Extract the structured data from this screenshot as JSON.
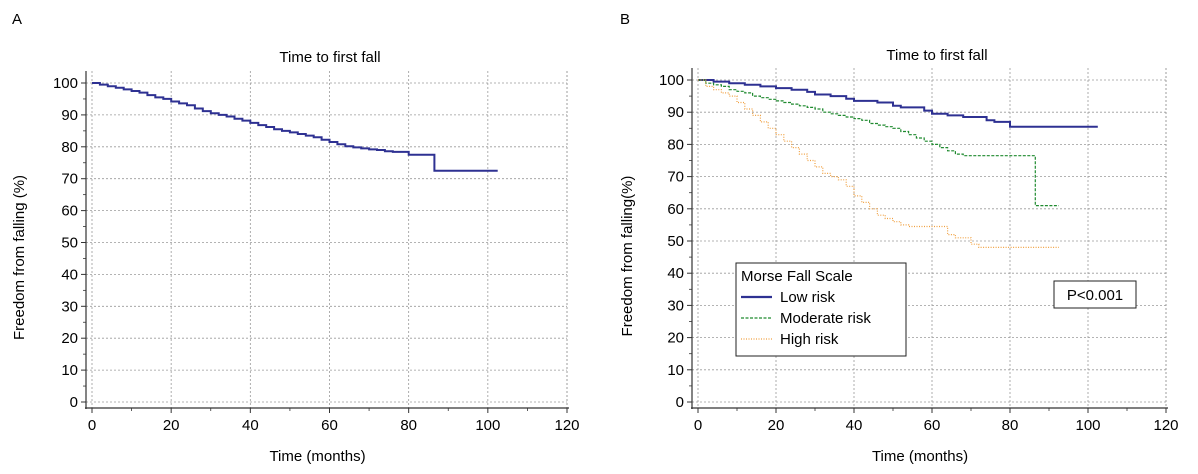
{
  "panels": [
    {
      "letter": "A"
    },
    {
      "letter": "B"
    }
  ],
  "chart_data": [
    {
      "type": "line",
      "title": "Time to first fall",
      "xlabel": "Time (months)",
      "ylabel": "Freedom from falling (%)",
      "xlim": [
        0,
        120
      ],
      "ylim": [
        0,
        100
      ],
      "x_ticks": [
        "0",
        "20",
        "40",
        "60",
        "80",
        "100",
        "120"
      ],
      "y_ticks": [
        "0",
        "10",
        "20",
        "30",
        "40",
        "50",
        "60",
        "70",
        "80",
        "90",
        "100"
      ],
      "grid": true,
      "series": [
        {
          "color": "#2e3192",
          "style": "solid",
          "steps": [
            [
              0,
              100
            ],
            [
              2,
              99.5
            ],
            [
              4,
              99
            ],
            [
              6,
              98.5
            ],
            [
              8,
              98
            ],
            [
              10,
              97.5
            ],
            [
              12,
              97
            ],
            [
              14,
              96.2
            ],
            [
              16,
              95.5
            ],
            [
              18,
              95
            ],
            [
              20,
              94.2
            ],
            [
              22,
              93.6
            ],
            [
              24,
              93
            ],
            [
              26,
              92
            ],
            [
              28,
              91.2
            ],
            [
              30,
              90.5
            ],
            [
              32,
              90
            ],
            [
              34,
              89.5
            ],
            [
              36,
              88.8
            ],
            [
              38,
              88.2
            ],
            [
              40,
              87.5
            ],
            [
              42,
              86.8
            ],
            [
              44,
              86.2
            ],
            [
              46,
              85.5
            ],
            [
              48,
              85
            ],
            [
              50,
              84.5
            ],
            [
              52,
              84
            ],
            [
              54,
              83.5
            ],
            [
              56,
              83
            ],
            [
              58,
              82.2
            ],
            [
              60,
              81.5
            ],
            [
              62,
              80.8
            ],
            [
              64,
              80.2
            ],
            [
              66,
              79.8
            ],
            [
              68,
              79.5
            ],
            [
              70,
              79.2
            ],
            [
              72,
              79
            ],
            [
              74,
              78.6
            ],
            [
              76,
              78.4
            ],
            [
              80,
              77.5
            ],
            [
              86.5,
              72.5
            ],
            [
              102.5,
              72.5
            ]
          ]
        }
      ]
    },
    {
      "type": "line",
      "title": "Time to first fall",
      "xlabel": "Time (months)",
      "ylabel": "Freedom from falling(%)",
      "xlim": [
        0,
        120
      ],
      "ylim": [
        0,
        100
      ],
      "x_ticks": [
        "0",
        "20",
        "40",
        "60",
        "80",
        "100",
        "120"
      ],
      "y_ticks": [
        "0",
        "10",
        "20",
        "30",
        "40",
        "50",
        "60",
        "70",
        "80",
        "90",
        "100"
      ],
      "grid": true,
      "legend": {
        "title": "Morse Fall Scale",
        "position": "bottom-left"
      },
      "annotation": "P<0.001",
      "series": [
        {
          "name": "Low risk",
          "color": "#2e3192",
          "style": "solid",
          "steps": [
            [
              0,
              100
            ],
            [
              4,
              99.5
            ],
            [
              8,
              99
            ],
            [
              12,
              98.5
            ],
            [
              16,
              98
            ],
            [
              20,
              97.5
            ],
            [
              24,
              97
            ],
            [
              28,
              96.3
            ],
            [
              30,
              95.5
            ],
            [
              34,
              95
            ],
            [
              38,
              94.2
            ],
            [
              40,
              93.5
            ],
            [
              46,
              93
            ],
            [
              50,
              92
            ],
            [
              52,
              91.5
            ],
            [
              58,
              90.5
            ],
            [
              60,
              89.5
            ],
            [
              64,
              89
            ],
            [
              68,
              88.5
            ],
            [
              74,
              87.5
            ],
            [
              76,
              87
            ],
            [
              80,
              85.5
            ],
            [
              102.5,
              85.5
            ]
          ]
        },
        {
          "name": "Moderate risk",
          "color": "#1f8a2f",
          "style": "dashed",
          "steps": [
            [
              0,
              100
            ],
            [
              2,
              99
            ],
            [
              4,
              98.5
            ],
            [
              6,
              98
            ],
            [
              8,
              97
            ],
            [
              10,
              96.5
            ],
            [
              12,
              96
            ],
            [
              14,
              95
            ],
            [
              16,
              94.5
            ],
            [
              18,
              94
            ],
            [
              20,
              93.5
            ],
            [
              22,
              93
            ],
            [
              24,
              92.5
            ],
            [
              26,
              92
            ],
            [
              28,
              91.5
            ],
            [
              30,
              91
            ],
            [
              32,
              90
            ],
            [
              34,
              89.5
            ],
            [
              36,
              89
            ],
            [
              38,
              88.5
            ],
            [
              40,
              88
            ],
            [
              42,
              87.5
            ],
            [
              44,
              86.5
            ],
            [
              46,
              86
            ],
            [
              48,
              85.5
            ],
            [
              50,
              85
            ],
            [
              52,
              84
            ],
            [
              54,
              83
            ],
            [
              56,
              82
            ],
            [
              58,
              81
            ],
            [
              60,
              80
            ],
            [
              62,
              79
            ],
            [
              64,
              78
            ],
            [
              66,
              77
            ],
            [
              68,
              76.5
            ],
            [
              86.5,
              61
            ],
            [
              92.5,
              61
            ]
          ]
        },
        {
          "name": "High risk",
          "color": "#f0a040",
          "style": "dotted",
          "steps": [
            [
              0,
              100
            ],
            [
              2,
              98
            ],
            [
              4,
              97
            ],
            [
              6,
              96
            ],
            [
              8,
              95
            ],
            [
              10,
              93
            ],
            [
              12,
              91
            ],
            [
              14,
              89
            ],
            [
              16,
              87
            ],
            [
              18,
              85
            ],
            [
              20,
              83
            ],
            [
              22,
              81
            ],
            [
              24,
              79
            ],
            [
              26,
              77
            ],
            [
              28,
              75
            ],
            [
              30,
              73
            ],
            [
              32,
              71
            ],
            [
              34,
              70
            ],
            [
              36,
              69
            ],
            [
              38,
              67
            ],
            [
              40,
              64
            ],
            [
              42,
              62
            ],
            [
              44,
              60
            ],
            [
              46,
              58
            ],
            [
              48,
              57
            ],
            [
              50,
              56
            ],
            [
              52,
              55
            ],
            [
              54,
              54.5
            ],
            [
              62,
              54.5
            ],
            [
              64,
              52
            ],
            [
              66,
              51
            ],
            [
              70,
              49
            ],
            [
              72,
              48
            ],
            [
              92.5,
              48
            ]
          ]
        }
      ]
    }
  ]
}
